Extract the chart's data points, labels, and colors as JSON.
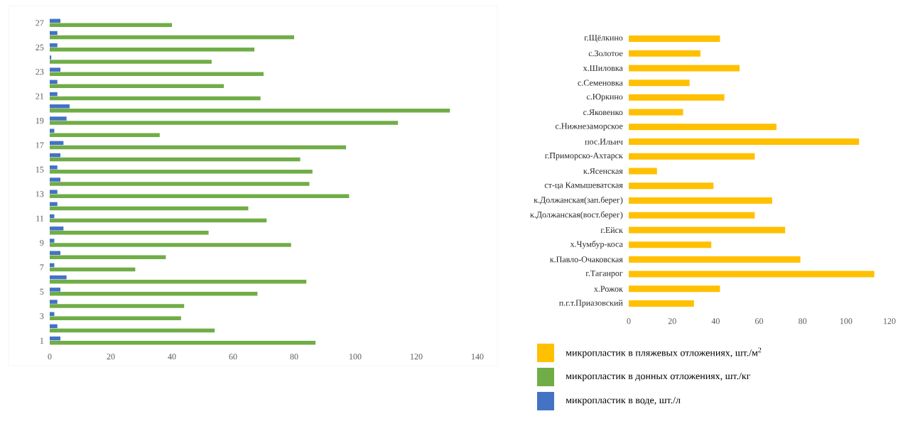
{
  "chart_data": [
    {
      "type": "bar",
      "orientation": "horizontal",
      "legend": "bottom right",
      "categories": [
        "27",
        null,
        "25",
        null,
        "23",
        null,
        "21",
        null,
        "19",
        null,
        "17",
        null,
        "15",
        null,
        "13",
        null,
        "11",
        null,
        "9",
        null,
        "7",
        null,
        "5",
        null,
        "3",
        null,
        "1"
      ],
      "series": [
        {
          "name": "микропластик в донных отложениях, шт./кг",
          "color": "#70ad47",
          "values": [
            40,
            80,
            67,
            53,
            70,
            57,
            69,
            131,
            114,
            36,
            97,
            82,
            86,
            85,
            98,
            65,
            71,
            52,
            79,
            38,
            28,
            84,
            68,
            44,
            43,
            54,
            87
          ]
        },
        {
          "name": "микропластик в воде, шт./л",
          "color": "#4472c4",
          "values": [
            3.5,
            2.5,
            2.5,
            0.5,
            3.5,
            2.5,
            2.5,
            6.5,
            5.5,
            1.5,
            4.5,
            3.5,
            2.5,
            3.5,
            2.5,
            2.5,
            1.5,
            4.5,
            1.5,
            3.5,
            1.5,
            5.5,
            3.5,
            2.5,
            1.5,
            2.5,
            3.5
          ]
        }
      ],
      "xlim": [
        0,
        140
      ],
      "xticks": [
        0,
        20,
        40,
        60,
        80,
        100,
        120,
        140
      ]
    },
    {
      "type": "bar",
      "orientation": "horizontal",
      "legend": "bottom",
      "categories": [
        "г.Щёлкино",
        "с.Золотое",
        "х.Шиловка",
        "с.Семеновка",
        "с.Юркино",
        "с.Яковенко",
        "с.Нижнезаморское",
        "пос.Ильич",
        "г.Приморско-Ахтарск",
        "к.Ясенская",
        "ст-ца Камышеватская",
        "к.Должанская(зап.берег)",
        "к.Должанская(вост.берег)",
        "г.Ейск",
        "х.Чумбур-коса",
        "к.Павло-Очаковская",
        "г.Таганрог",
        "х.Рожок",
        "п.г.т.Приазовский"
      ],
      "series": [
        {
          "name": "микропластик в пляжевых отложениях, шт./м$^{2}$",
          "color": "#ffc000",
          "values": [
            42,
            33,
            51,
            28,
            44,
            25,
            68,
            106,
            58,
            13,
            39,
            66,
            58,
            72,
            38,
            79,
            113,
            42,
            30
          ]
        }
      ],
      "xlim": [
        0,
        120
      ],
      "xticks": [
        0,
        20,
        40,
        60,
        80,
        100,
        120
      ]
    }
  ]
}
